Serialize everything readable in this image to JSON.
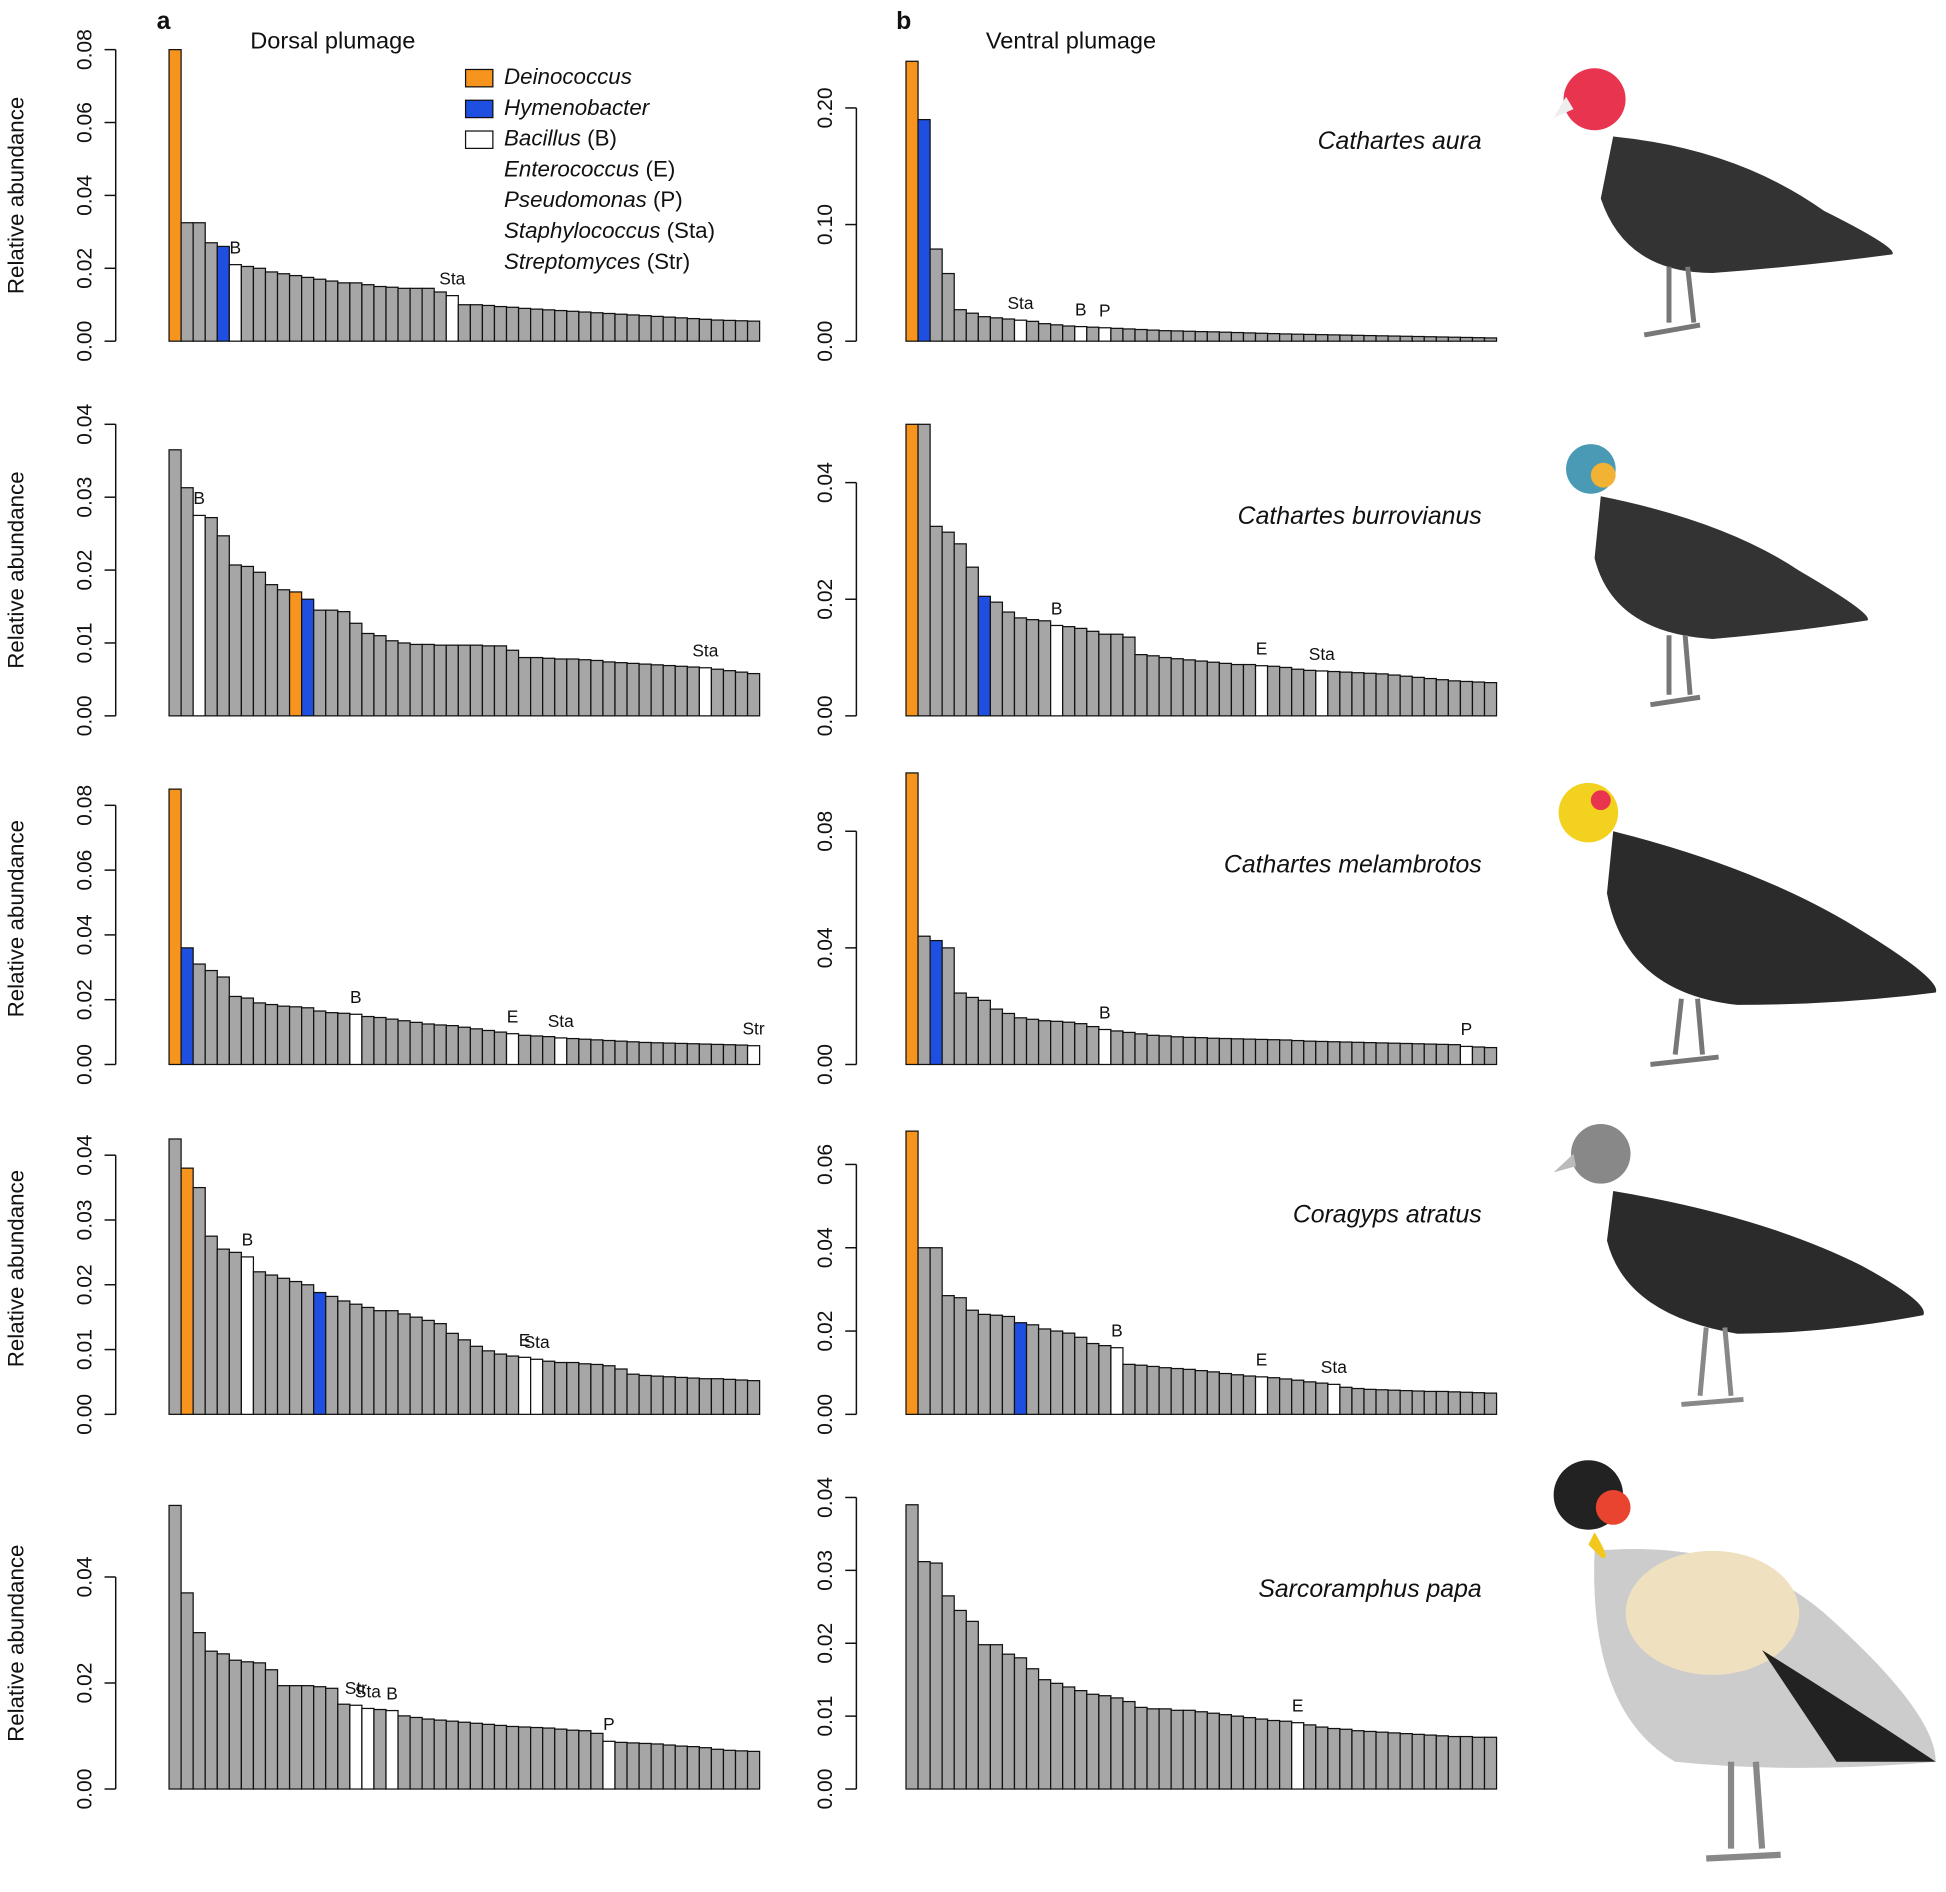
{
  "chart_data": [
    {
      "type": "bar",
      "panel_label": "a",
      "subtitle": "Dorsal plumage",
      "y_label": "Relative abundance",
      "bar_color": "#a6a6a6",
      "values": [
        0.08,
        0.0325,
        0.0325,
        0.027,
        0.026,
        0.021,
        0.0205,
        0.02,
        0.019,
        0.0185,
        0.018,
        0.0175,
        0.017,
        0.0165,
        0.016,
        0.016,
        0.0155,
        0.015,
        0.0148,
        0.0145,
        0.0145,
        0.0145,
        0.0135,
        0.0125,
        0.01,
        0.01,
        0.0098,
        0.0095,
        0.0093,
        0.009,
        0.0088,
        0.0086,
        0.0084,
        0.0082,
        0.008,
        0.0078,
        0.0076,
        0.0074,
        0.0072,
        0.007,
        0.0068,
        0.0066,
        0.0064,
        0.0062,
        0.006,
        0.0058,
        0.0057,
        0.0056,
        0.0055
      ],
      "ylim": [
        0,
        0.08
      ],
      "yticks": [
        {
          "value": 0,
          "label": "0.00"
        },
        {
          "value": 0.02,
          "label": "0.02"
        },
        {
          "value": 0.04,
          "label": "0.04"
        },
        {
          "value": 0.06,
          "label": "0.06"
        },
        {
          "value": 0.08,
          "label": "0.08"
        }
      ],
      "highlights": [
        {
          "index": 0,
          "color": "#f7941d"
        },
        {
          "index": 4,
          "color": "#1f4fe0"
        },
        {
          "index": 5,
          "color": "#ffffff",
          "label": "B"
        },
        {
          "index": 23,
          "color": "#ffffff",
          "label": "Sta"
        }
      ],
      "legend": [
        {
          "name": "Deinococcus",
          "color": "#f7941d"
        },
        {
          "name": "Hymenobacter",
          "color": "#1f4fe0"
        },
        {
          "name": "Bacillus",
          "abbr": "(B)",
          "color": "#ffffff"
        },
        {
          "name": "Enterococcus",
          "abbr": "(E)"
        },
        {
          "name": "Pseudomonas",
          "abbr": "(P)"
        },
        {
          "name": "Staphylococcus",
          "abbr": "(Sta)"
        },
        {
          "name": "Streptomyces",
          "abbr": "(Str)"
        }
      ]
    },
    {
      "type": "bar",
      "panel_label": "b",
      "subtitle": "Ventral plumage",
      "annotation": "Cathartes aura",
      "bar_color": "#a6a6a6",
      "values": [
        0.24,
        0.19,
        0.079,
        0.058,
        0.027,
        0.024,
        0.021,
        0.02,
        0.019,
        0.018,
        0.017,
        0.015,
        0.014,
        0.013,
        0.0125,
        0.012,
        0.0115,
        0.011,
        0.0105,
        0.01,
        0.0095,
        0.009,
        0.0088,
        0.0085,
        0.0082,
        0.008,
        0.0077,
        0.0074,
        0.0071,
        0.0068,
        0.0065,
        0.0062,
        0.006,
        0.0058,
        0.0056,
        0.0054,
        0.0052,
        0.005,
        0.0048,
        0.0046,
        0.0044,
        0.0042,
        0.004,
        0.0038,
        0.0036,
        0.0034,
        0.0032,
        0.003,
        0.0028
      ],
      "ylim": [
        0,
        0.25
      ],
      "yticks": [
        {
          "value": 0,
          "label": "0.00"
        },
        {
          "value": 0.1,
          "label": "0.10"
        },
        {
          "value": 0.2,
          "label": "0.20"
        }
      ],
      "highlights": [
        {
          "index": 0,
          "color": "#f7941d"
        },
        {
          "index": 1,
          "color": "#1f4fe0"
        },
        {
          "index": 9,
          "color": "#ffffff",
          "label": "Sta"
        },
        {
          "index": 14,
          "color": "#ffffff",
          "label": "B"
        },
        {
          "index": 16,
          "color": "#ffffff",
          "label": "P"
        }
      ]
    },
    {
      "type": "bar",
      "y_label": "Relative abundance",
      "bar_color": "#a6a6a6",
      "values": [
        0.0365,
        0.0313,
        0.0275,
        0.0272,
        0.0247,
        0.0207,
        0.0205,
        0.0197,
        0.018,
        0.0173,
        0.017,
        0.016,
        0.0145,
        0.0145,
        0.0143,
        0.0127,
        0.0113,
        0.011,
        0.0103,
        0.01,
        0.0098,
        0.0098,
        0.0097,
        0.0097,
        0.0097,
        0.0097,
        0.0096,
        0.0096,
        0.009,
        0.008,
        0.008,
        0.0079,
        0.0078,
        0.0078,
        0.0077,
        0.0076,
        0.0074,
        0.0073,
        0.0072,
        0.0071,
        0.007,
        0.0069,
        0.0068,
        0.0067,
        0.0066,
        0.0064,
        0.0062,
        0.006,
        0.0058
      ],
      "ylim": [
        0,
        0.04
      ],
      "yticks": [
        {
          "value": 0,
          "label": "0.00"
        },
        {
          "value": 0.01,
          "label": "0.01"
        },
        {
          "value": 0.02,
          "label": "0.02"
        },
        {
          "value": 0.03,
          "label": "0.03"
        },
        {
          "value": 0.04,
          "label": "0.04"
        }
      ],
      "highlights": [
        {
          "index": 2,
          "color": "#ffffff",
          "label": "B"
        },
        {
          "index": 10,
          "color": "#f7941d"
        },
        {
          "index": 11,
          "color": "#1f4fe0"
        },
        {
          "index": 44,
          "color": "#ffffff",
          "label": "Sta"
        }
      ]
    },
    {
      "type": "bar",
      "annotation": "Cathartes burrovianus",
      "bar_color": "#a6a6a6",
      "values": [
        0.05,
        0.05,
        0.0325,
        0.0315,
        0.0295,
        0.0255,
        0.0205,
        0.0195,
        0.0178,
        0.0168,
        0.0165,
        0.0163,
        0.0155,
        0.0153,
        0.015,
        0.0145,
        0.014,
        0.014,
        0.0135,
        0.0105,
        0.0103,
        0.01,
        0.0098,
        0.0096,
        0.0094,
        0.0092,
        0.009,
        0.0088,
        0.0088,
        0.0086,
        0.0085,
        0.0083,
        0.008,
        0.0078,
        0.0077,
        0.0076,
        0.0075,
        0.0074,
        0.0073,
        0.0072,
        0.007,
        0.0068,
        0.0066,
        0.0064,
        0.0062,
        0.006,
        0.0059,
        0.0058,
        0.0057
      ],
      "ylim": [
        0,
        0.05
      ],
      "yticks": [
        {
          "value": 0,
          "label": "0.00"
        },
        {
          "value": 0.02,
          "label": "0.02"
        },
        {
          "value": 0.04,
          "label": "0.04"
        }
      ],
      "highlights": [
        {
          "index": 0,
          "color": "#f7941d"
        },
        {
          "index": 6,
          "color": "#1f4fe0"
        },
        {
          "index": 12,
          "color": "#ffffff",
          "label": "B"
        },
        {
          "index": 29,
          "color": "#ffffff",
          "label": "E"
        },
        {
          "index": 34,
          "color": "#ffffff",
          "label": "Sta"
        }
      ]
    },
    {
      "type": "bar",
      "y_label": "Relative abundance",
      "bar_color": "#a6a6a6",
      "values": [
        0.085,
        0.036,
        0.031,
        0.029,
        0.027,
        0.021,
        0.0205,
        0.019,
        0.0185,
        0.018,
        0.0178,
        0.0175,
        0.0165,
        0.016,
        0.0158,
        0.0155,
        0.0148,
        0.0145,
        0.014,
        0.0135,
        0.013,
        0.0125,
        0.0122,
        0.012,
        0.0115,
        0.011,
        0.0105,
        0.01,
        0.0095,
        0.009,
        0.0088,
        0.0086,
        0.0082,
        0.008,
        0.0078,
        0.0076,
        0.0074,
        0.0072,
        0.007,
        0.0068,
        0.0067,
        0.0066,
        0.0065,
        0.0064,
        0.0063,
        0.0062,
        0.0061,
        0.006,
        0.0058
      ],
      "ylim": [
        0,
        0.09
      ],
      "yticks": [
        {
          "value": 0,
          "label": "0.00"
        },
        {
          "value": 0.02,
          "label": "0.02"
        },
        {
          "value": 0.04,
          "label": "0.04"
        },
        {
          "value": 0.06,
          "label": "0.06"
        },
        {
          "value": 0.08,
          "label": "0.08"
        }
      ],
      "highlights": [
        {
          "index": 0,
          "color": "#f7941d"
        },
        {
          "index": 1,
          "color": "#1f4fe0"
        },
        {
          "index": 15,
          "color": "#ffffff",
          "label": "B"
        },
        {
          "index": 28,
          "color": "#ffffff",
          "label": "E"
        },
        {
          "index": 32,
          "color": "#ffffff",
          "label": "Sta"
        },
        {
          "index": 48,
          "color": "#ffffff",
          "label": "Str"
        }
      ]
    },
    {
      "type": "bar",
      "annotation": "Cathartes melambrotos",
      "bar_color": "#a6a6a6",
      "values": [
        0.1,
        0.044,
        0.0425,
        0.04,
        0.0245,
        0.023,
        0.022,
        0.019,
        0.0175,
        0.016,
        0.0155,
        0.015,
        0.0148,
        0.0145,
        0.014,
        0.013,
        0.012,
        0.0115,
        0.011,
        0.0105,
        0.01,
        0.0098,
        0.0095,
        0.0093,
        0.0092,
        0.009,
        0.0089,
        0.0088,
        0.0087,
        0.0086,
        0.0085,
        0.0084,
        0.0082,
        0.008,
        0.0079,
        0.0078,
        0.0077,
        0.0076,
        0.0075,
        0.0074,
        0.0073,
        0.0072,
        0.0071,
        0.007,
        0.0069,
        0.0068,
        0.0062,
        0.006,
        0.0058
      ],
      "ylim": [
        0,
        0.1
      ],
      "yticks": [
        {
          "value": 0,
          "label": "0.00"
        },
        {
          "value": 0.04,
          "label": "0.04"
        },
        {
          "value": 0.08,
          "label": "0.08"
        }
      ],
      "highlights": [
        {
          "index": 0,
          "color": "#f7941d"
        },
        {
          "index": 2,
          "color": "#1f4fe0"
        },
        {
          "index": 16,
          "color": "#ffffff",
          "label": "B"
        },
        {
          "index": 46,
          "color": "#ffffff",
          "label": "P"
        }
      ]
    },
    {
      "type": "bar",
      "y_label": "Relative abundance",
      "bar_color": "#a6a6a6",
      "values": [
        0.0425,
        0.038,
        0.035,
        0.0275,
        0.0255,
        0.025,
        0.0243,
        0.022,
        0.0215,
        0.021,
        0.0205,
        0.02,
        0.0188,
        0.0182,
        0.0175,
        0.017,
        0.0165,
        0.016,
        0.016,
        0.0155,
        0.015,
        0.0145,
        0.014,
        0.0125,
        0.0115,
        0.0105,
        0.0098,
        0.0093,
        0.009,
        0.0088,
        0.0085,
        0.0082,
        0.008,
        0.008,
        0.0078,
        0.0077,
        0.0075,
        0.007,
        0.0062,
        0.006,
        0.0059,
        0.0058,
        0.0057,
        0.0056,
        0.0055,
        0.0055,
        0.0054,
        0.0053,
        0.0052
      ],
      "ylim": [
        0,
        0.045
      ],
      "yticks": [
        {
          "value": 0,
          "label": "0.00"
        },
        {
          "value": 0.01,
          "label": "0.01"
        },
        {
          "value": 0.02,
          "label": "0.02"
        },
        {
          "value": 0.03,
          "label": "0.03"
        },
        {
          "value": 0.04,
          "label": "0.04"
        }
      ],
      "highlights": [
        {
          "index": 1,
          "color": "#f7941d"
        },
        {
          "index": 6,
          "color": "#ffffff",
          "label": "B"
        },
        {
          "index": 12,
          "color": "#1f4fe0"
        },
        {
          "index": 29,
          "color": "#ffffff",
          "label": "E"
        },
        {
          "index": 30,
          "color": "#ffffff",
          "label": "Sta"
        }
      ]
    },
    {
      "type": "bar",
      "annotation": "Coragyps atratus",
      "bar_color": "#a6a6a6",
      "values": [
        0.068,
        0.04,
        0.04,
        0.0285,
        0.028,
        0.025,
        0.024,
        0.0238,
        0.0235,
        0.022,
        0.0215,
        0.0205,
        0.02,
        0.0195,
        0.0185,
        0.017,
        0.0165,
        0.016,
        0.012,
        0.0118,
        0.0115,
        0.0112,
        0.011,
        0.0108,
        0.0105,
        0.0102,
        0.0098,
        0.0095,
        0.0092,
        0.009,
        0.0088,
        0.0085,
        0.0082,
        0.0078,
        0.0075,
        0.0072,
        0.0065,
        0.0062,
        0.006,
        0.0059,
        0.0058,
        0.0057,
        0.0056,
        0.0055,
        0.0055,
        0.0054,
        0.0053,
        0.0052,
        0.0051
      ],
      "ylim": [
        0,
        0.07
      ],
      "yticks": [
        {
          "value": 0,
          "label": "0.00"
        },
        {
          "value": 0.02,
          "label": "0.02"
        },
        {
          "value": 0.04,
          "label": "0.04"
        },
        {
          "value": 0.06,
          "label": "0.06"
        }
      ],
      "highlights": [
        {
          "index": 0,
          "color": "#f7941d"
        },
        {
          "index": 9,
          "color": "#1f4fe0"
        },
        {
          "index": 17,
          "color": "#ffffff",
          "label": "B"
        },
        {
          "index": 29,
          "color": "#ffffff",
          "label": "E"
        },
        {
          "index": 35,
          "color": "#ffffff",
          "label": "Sta"
        }
      ]
    },
    {
      "type": "bar",
      "y_label": "Relative abundance",
      "bar_color": "#a6a6a6",
      "values": [
        0.0535,
        0.037,
        0.0295,
        0.026,
        0.0255,
        0.0243,
        0.024,
        0.0238,
        0.0225,
        0.0195,
        0.0195,
        0.0195,
        0.0193,
        0.019,
        0.016,
        0.0158,
        0.0152,
        0.015,
        0.0148,
        0.0138,
        0.0135,
        0.0132,
        0.013,
        0.0128,
        0.0126,
        0.0124,
        0.0122,
        0.012,
        0.0118,
        0.0117,
        0.0116,
        0.0115,
        0.0113,
        0.0111,
        0.011,
        0.0105,
        0.009,
        0.0088,
        0.0087,
        0.0086,
        0.0085,
        0.0083,
        0.0081,
        0.008,
        0.0078,
        0.0075,
        0.0073,
        0.0072,
        0.0071
      ],
      "ylim": [
        0,
        0.055
      ],
      "yticks": [
        {
          "value": 0,
          "label": "0.00"
        },
        {
          "value": 0.02,
          "label": "0.02"
        },
        {
          "value": 0.04,
          "label": "0.04"
        }
      ],
      "highlights": [
        {
          "index": 15,
          "color": "#ffffff",
          "label": "Str"
        },
        {
          "index": 16,
          "color": "#ffffff",
          "label": "Sta"
        },
        {
          "index": 18,
          "color": "#ffffff",
          "label": "B"
        },
        {
          "index": 36,
          "color": "#ffffff",
          "label": "P"
        }
      ]
    },
    {
      "type": "bar",
      "annotation": "Sarcoramphus papa",
      "bar_color": "#a6a6a6",
      "values": [
        0.039,
        0.0312,
        0.031,
        0.0265,
        0.0245,
        0.023,
        0.0198,
        0.0198,
        0.0185,
        0.018,
        0.0165,
        0.015,
        0.0145,
        0.014,
        0.0135,
        0.013,
        0.0128,
        0.0125,
        0.012,
        0.0112,
        0.011,
        0.011,
        0.0108,
        0.0108,
        0.0106,
        0.0104,
        0.0102,
        0.01,
        0.0098,
        0.0096,
        0.0094,
        0.0093,
        0.0091,
        0.0088,
        0.0085,
        0.0083,
        0.0082,
        0.008,
        0.0079,
        0.0078,
        0.0077,
        0.0076,
        0.0075,
        0.0074,
        0.0073,
        0.0072,
        0.0072,
        0.0071,
        0.0071
      ],
      "ylim": [
        0,
        0.04
      ],
      "yticks": [
        {
          "value": 0,
          "label": "0.00"
        },
        {
          "value": 0.01,
          "label": "0.01"
        },
        {
          "value": 0.02,
          "label": "0.02"
        },
        {
          "value": 0.03,
          "label": "0.03"
        },
        {
          "value": 0.04,
          "label": "0.04"
        }
      ],
      "highlights": [
        {
          "index": 32,
          "color": "#ffffff",
          "label": "E"
        }
      ]
    }
  ]
}
